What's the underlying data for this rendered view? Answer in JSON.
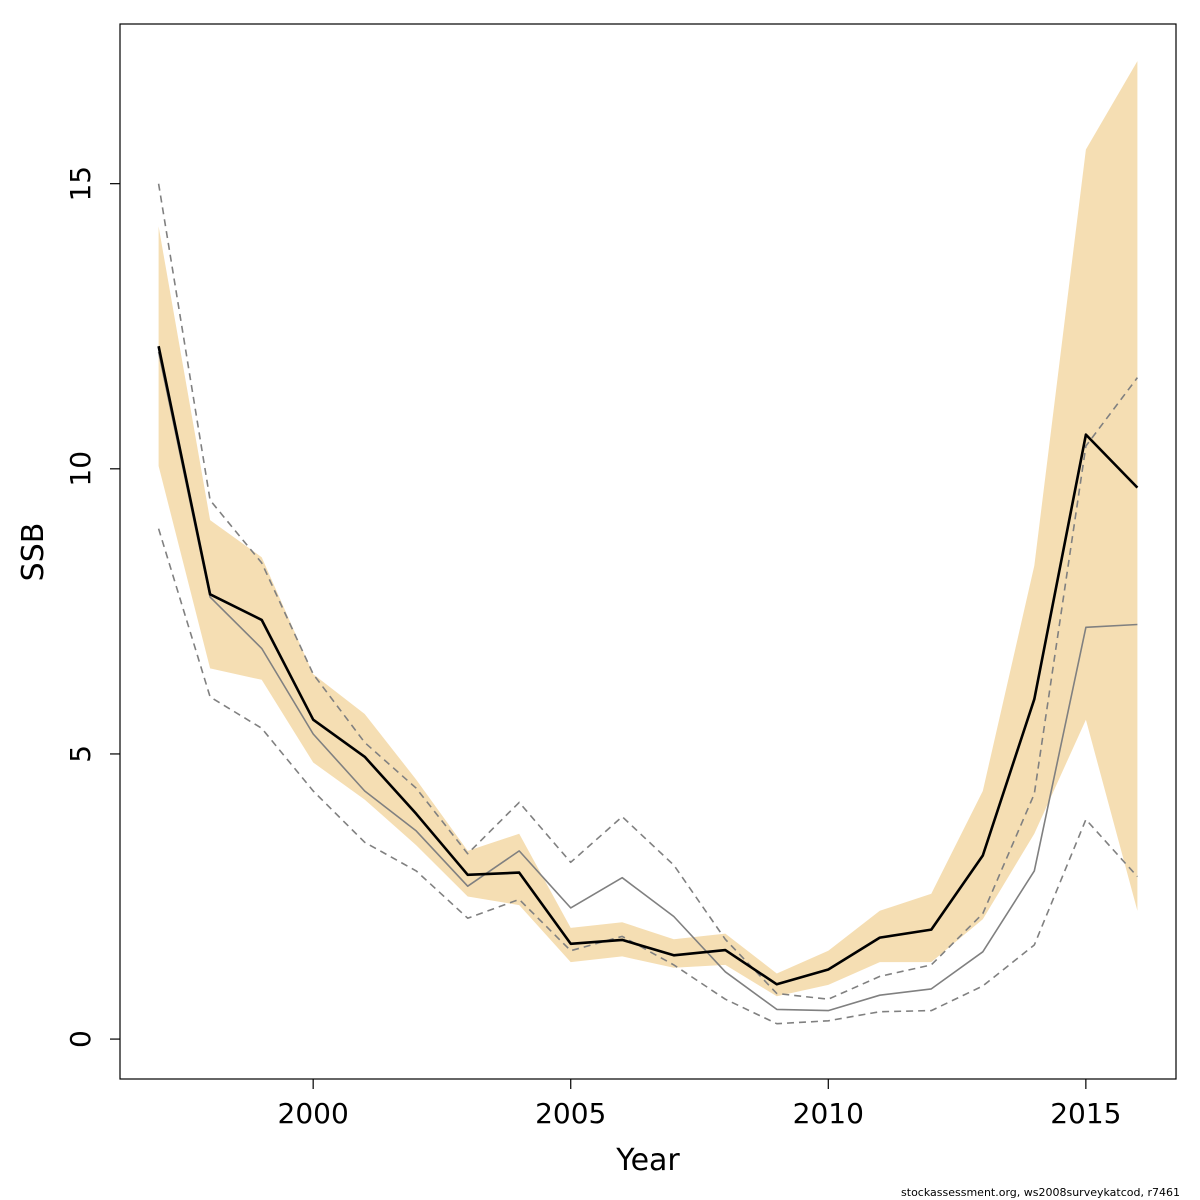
{
  "chart_data": {
    "type": "line",
    "title": "",
    "xlabel": "Year",
    "ylabel": "SSB",
    "xlim": [
      1996.25,
      2016.75
    ],
    "ylim": [
      -0.7,
      17.8
    ],
    "x_ticks": [
      2000,
      2005,
      2010,
      2015
    ],
    "y_ticks": [
      0,
      5,
      10,
      15
    ],
    "x": [
      1997,
      1998,
      1999,
      2000,
      2001,
      2002,
      2003,
      2004,
      2005,
      2006,
      2007,
      2008,
      2009,
      2010,
      2011,
      2012,
      2013,
      2014,
      2015,
      2016
    ],
    "band": {
      "color": "#f5deb3",
      "lower": [
        10.05,
        6.5,
        6.3,
        4.85,
        4.2,
        3.4,
        2.5,
        2.35,
        1.35,
        1.45,
        1.25,
        1.3,
        0.75,
        0.95,
        1.35,
        1.35,
        2.1,
        3.6,
        5.6,
        2.25
      ],
      "upper": [
        14.25,
        9.1,
        8.45,
        6.4,
        5.7,
        4.55,
        3.3,
        3.6,
        1.95,
        2.05,
        1.75,
        1.85,
        1.15,
        1.55,
        2.25,
        2.55,
        4.35,
        8.3,
        15.6,
        17.15
      ]
    },
    "series": [
      {
        "color": "#000000",
        "style": "solid",
        "values": [
          12.15,
          7.8,
          7.35,
          5.6,
          4.95,
          3.95,
          2.88,
          2.92,
          1.67,
          1.74,
          1.47,
          1.56,
          0.96,
          1.22,
          1.78,
          1.92,
          3.22,
          5.96,
          10.6,
          9.67
        ]
      },
      {
        "color": "#808080",
        "style": "solid",
        "values": [
          12.05,
          7.75,
          6.85,
          5.35,
          4.35,
          3.65,
          2.68,
          3.3,
          2.3,
          2.83,
          2.15,
          1.18,
          0.52,
          0.5,
          0.77,
          0.88,
          1.53,
          2.95,
          7.22,
          7.27
        ]
      },
      {
        "color": "#808080",
        "style": "dashed",
        "values": [
          15.0,
          9.45,
          8.35,
          6.4,
          5.2,
          4.4,
          3.25,
          4.15,
          3.1,
          3.9,
          3.05,
          1.75,
          0.8,
          0.7,
          1.1,
          1.3,
          2.2,
          4.3,
          10.4,
          11.6
        ]
      },
      {
        "color": "#808080",
        "style": "dashed",
        "values": [
          8.95,
          6.0,
          5.45,
          4.35,
          3.45,
          2.95,
          2.12,
          2.45,
          1.55,
          1.8,
          1.3,
          0.7,
          0.27,
          0.32,
          0.48,
          0.5,
          0.93,
          1.65,
          3.85,
          2.85
        ]
      }
    ]
  },
  "footnote": "stockassessment.org, ws2008surveykatcod, r7461"
}
